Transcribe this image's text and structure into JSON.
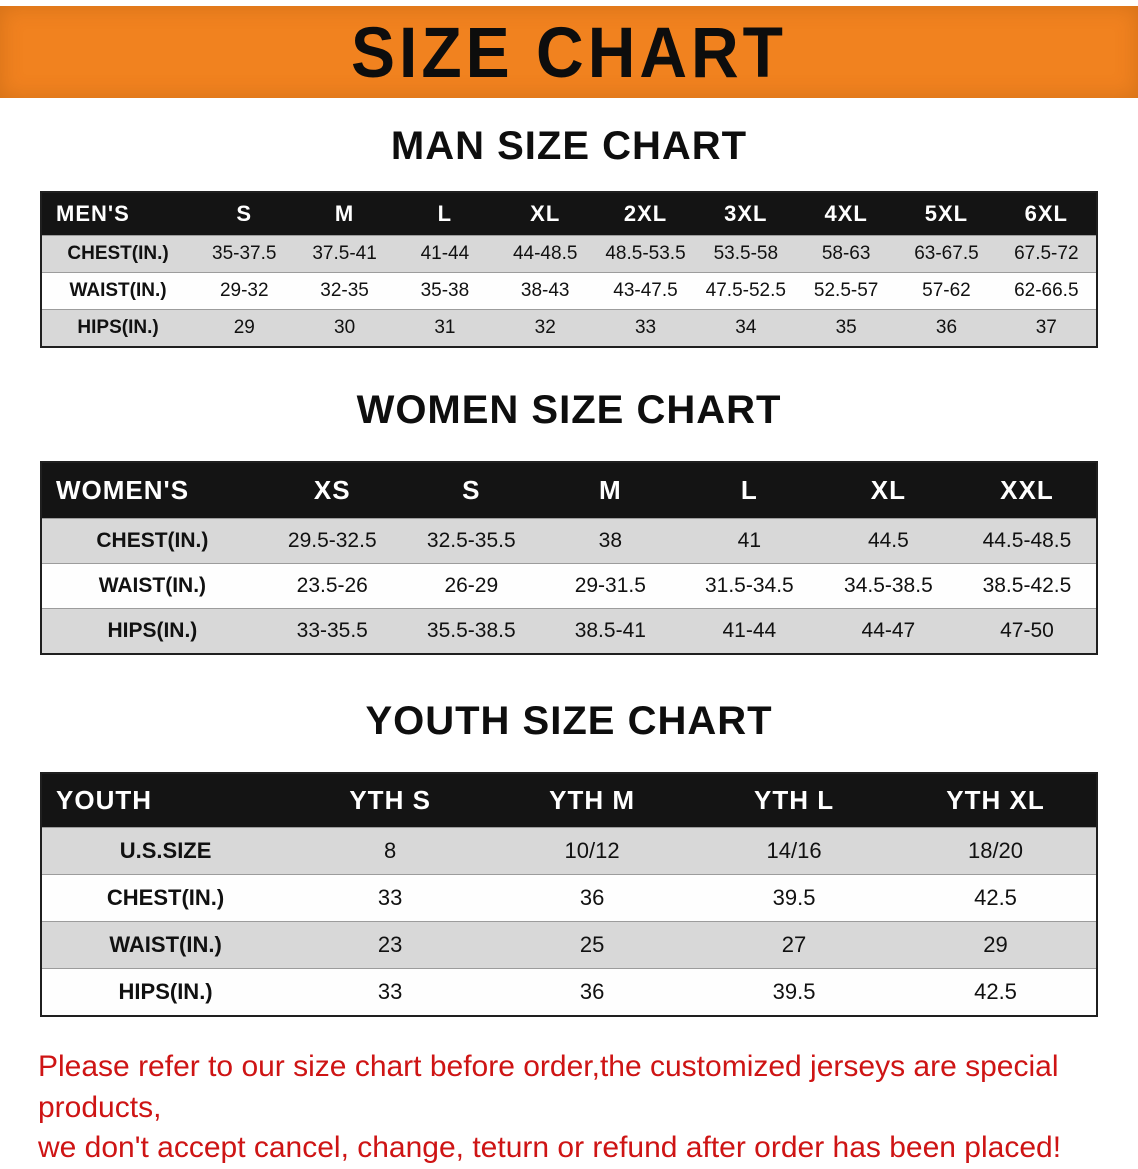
{
  "banner": {
    "title": "SIZE CHART"
  },
  "men": {
    "heading": "MAN SIZE CHART",
    "header": [
      "MEN'S",
      "S",
      "M",
      "L",
      "XL",
      "2XL",
      "3XL",
      "4XL",
      "5XL",
      "6XL"
    ],
    "rows": [
      [
        "CHEST(IN.)",
        "35-37.5",
        "37.5-41",
        "41-44",
        "44-48.5",
        "48.5-53.5",
        "53.5-58",
        "58-63",
        "63-67.5",
        "67.5-72"
      ],
      [
        "WAIST(IN.)",
        "29-32",
        "32-35",
        "35-38",
        "38-43",
        "43-47.5",
        "47.5-52.5",
        "52.5-57",
        "57-62",
        "62-66.5"
      ],
      [
        "HIPS(IN.)",
        "29",
        "30",
        "31",
        "32",
        "33",
        "34",
        "35",
        "36",
        "37"
      ]
    ]
  },
  "women": {
    "heading": "WOMEN SIZE CHART",
    "header": [
      "WOMEN'S",
      "XS",
      "S",
      "M",
      "L",
      "XL",
      "XXL"
    ],
    "rows": [
      [
        "CHEST(IN.)",
        "29.5-32.5",
        "32.5-35.5",
        "38",
        "41",
        "44.5",
        "44.5-48.5"
      ],
      [
        "WAIST(IN.)",
        "23.5-26",
        "26-29",
        "29-31.5",
        "31.5-34.5",
        "34.5-38.5",
        "38.5-42.5"
      ],
      [
        "HIPS(IN.)",
        "33-35.5",
        "35.5-38.5",
        "38.5-41",
        "41-44",
        "44-47",
        "47-50"
      ]
    ]
  },
  "youth": {
    "heading": "YOUTH SIZE CHART",
    "header": [
      "YOUTH",
      "YTH S",
      "YTH M",
      "YTH L",
      "YTH XL"
    ],
    "rows": [
      [
        "U.S.SIZE",
        "8",
        "10/12",
        "14/16",
        "18/20"
      ],
      [
        "CHEST(IN.)",
        "33",
        "36",
        "39.5",
        "42.5"
      ],
      [
        "WAIST(IN.)",
        "23",
        "25",
        "27",
        "29"
      ],
      [
        "HIPS(IN.)",
        "33",
        "36",
        "39.5",
        "42.5"
      ]
    ]
  },
  "disclaimer": {
    "line1": "Please refer to our size chart before order,the customized jerseys are special products,",
    "line2": "we don't accept cancel, change, teturn or refund after order has been placed!"
  },
  "colors": {
    "banner_bg": "#f1821f",
    "table_header_bg": "#141414",
    "row_alt_bg": "#d8d8d8",
    "disclaimer_text": "#ce1414"
  }
}
